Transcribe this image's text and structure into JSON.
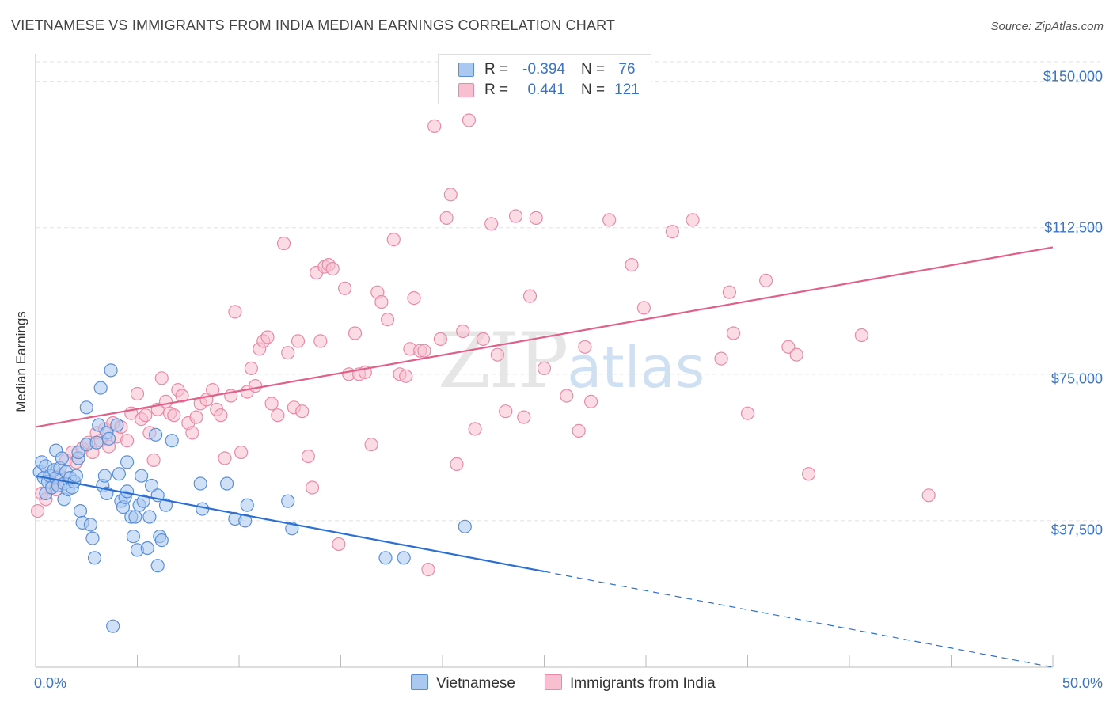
{
  "title": "VIETNAMESE VS IMMIGRANTS FROM INDIA MEDIAN EARNINGS CORRELATION CHART",
  "source": "Source: ZipAtlas.com",
  "watermark": {
    "zip": "ZIP",
    "atlas": "atlas"
  },
  "colors": {
    "vietnamese_fill": "#aac8f0",
    "vietnamese_stroke": "#5a8fd8",
    "vietnamese_line": "#2b6fd0",
    "india_fill": "#f7bfd0",
    "india_stroke": "#e889a8",
    "india_line": "#e0608a",
    "accent_text": "#3b74c4",
    "grid": "#e2e2e2"
  },
  "stats": [
    {
      "r_label": "R =",
      "r_value": "-0.394",
      "n_label": "N =",
      "n_value": "76",
      "swatch": "#aac8f0"
    },
    {
      "r_label": "R =",
      "r_value": "0.441",
      "n_label": "N =",
      "n_value": "121",
      "swatch": "#f7bfd0"
    }
  ],
  "legend": [
    {
      "label": "Vietnamese",
      "swatch": "#aac8f0"
    },
    {
      "label": "Immigrants from India",
      "swatch": "#f7bfd0"
    }
  ],
  "chart_data": {
    "type": "scatter",
    "title": "VIETNAMESE VS IMMIGRANTS FROM INDIA MEDIAN EARNINGS CORRELATION CHART",
    "xlabel": "",
    "ylabel": "Median Earnings",
    "xlim": [
      0,
      50
    ],
    "ylim": [
      0,
      155000
    ],
    "x_tick_labels": [
      "0.0%",
      "50.0%"
    ],
    "y_ticks": [
      37500,
      75000,
      112500,
      150000
    ],
    "y_tick_labels": [
      "$37,500",
      "$75,000",
      "$112,500",
      "$150,000"
    ],
    "grid": true,
    "legend_position": "bottom",
    "series": [
      {
        "name": "Vietnamese",
        "r": -0.394,
        "n": 76,
        "trend": {
          "x0": 0,
          "y0": 49000,
          "x_solid_end": 25,
          "x1": 50,
          "y1": 0
        },
        "points": [
          [
            0.2,
            50000
          ],
          [
            0.3,
            52500
          ],
          [
            0.4,
            48500
          ],
          [
            0.5,
            44500
          ],
          [
            0.5,
            51500
          ],
          [
            0.6,
            47500
          ],
          [
            0.7,
            49000
          ],
          [
            0.8,
            46000
          ],
          [
            0.9,
            50500
          ],
          [
            1.0,
            55500
          ],
          [
            1.0,
            48500
          ],
          [
            1.1,
            46500
          ],
          [
            1.2,
            51000
          ],
          [
            1.3,
            53500
          ],
          [
            1.4,
            47000
          ],
          [
            1.4,
            43000
          ],
          [
            1.5,
            50000
          ],
          [
            1.6,
            45500
          ],
          [
            1.7,
            48500
          ],
          [
            1.8,
            46000
          ],
          [
            1.9,
            47500
          ],
          [
            2.0,
            49000
          ],
          [
            2.1,
            53500
          ],
          [
            2.1,
            55000
          ],
          [
            2.2,
            40000
          ],
          [
            2.3,
            37000
          ],
          [
            2.5,
            57000
          ],
          [
            2.5,
            66500
          ],
          [
            2.7,
            36500
          ],
          [
            2.8,
            33000
          ],
          [
            2.9,
            28000
          ],
          [
            3.0,
            57500
          ],
          [
            3.1,
            62000
          ],
          [
            3.2,
            71500
          ],
          [
            3.3,
            46500
          ],
          [
            3.4,
            49000
          ],
          [
            3.5,
            44500
          ],
          [
            3.5,
            60000
          ],
          [
            3.6,
            58500
          ],
          [
            3.7,
            76000
          ],
          [
            3.8,
            10500
          ],
          [
            4.0,
            62000
          ],
          [
            4.1,
            49500
          ],
          [
            4.2,
            42500
          ],
          [
            4.3,
            41000
          ],
          [
            4.4,
            43500
          ],
          [
            4.5,
            52500
          ],
          [
            4.5,
            45000
          ],
          [
            4.7,
            38500
          ],
          [
            4.8,
            33500
          ],
          [
            4.9,
            38500
          ],
          [
            5.0,
            30000
          ],
          [
            5.1,
            41500
          ],
          [
            5.2,
            49000
          ],
          [
            5.3,
            42500
          ],
          [
            5.5,
            30500
          ],
          [
            5.6,
            38500
          ],
          [
            5.7,
            46500
          ],
          [
            5.9,
            59500
          ],
          [
            6.0,
            44000
          ],
          [
            6.0,
            26000
          ],
          [
            6.1,
            33500
          ],
          [
            6.2,
            32500
          ],
          [
            6.4,
            41500
          ],
          [
            6.7,
            58000
          ],
          [
            8.1,
            47000
          ],
          [
            8.2,
            40500
          ],
          [
            9.4,
            47000
          ],
          [
            9.8,
            38000
          ],
          [
            10.3,
            37500
          ],
          [
            10.4,
            41500
          ],
          [
            12.4,
            42500
          ],
          [
            12.6,
            35500
          ],
          [
            17.2,
            28000
          ],
          [
            18.1,
            28000
          ],
          [
            21.1,
            36000
          ]
        ]
      },
      {
        "name": "Immigrants from India",
        "r": 0.441,
        "n": 121,
        "trend": {
          "x0": 0,
          "y0": 61500,
          "x1": 50,
          "y1": 107500
        },
        "points": [
          [
            0.1,
            40000
          ],
          [
            0.3,
            44500
          ],
          [
            0.5,
            43000
          ],
          [
            0.8,
            47000
          ],
          [
            1.0,
            45500
          ],
          [
            1.2,
            49000
          ],
          [
            1.5,
            53000
          ],
          [
            1.8,
            55000
          ],
          [
            2.0,
            52500
          ],
          [
            2.3,
            56000
          ],
          [
            2.6,
            57500
          ],
          [
            2.8,
            55000
          ],
          [
            3.0,
            60000
          ],
          [
            3.2,
            58000
          ],
          [
            3.4,
            61000
          ],
          [
            3.6,
            56500
          ],
          [
            3.8,
            62500
          ],
          [
            4.0,
            59000
          ],
          [
            4.2,
            61500
          ],
          [
            4.5,
            58000
          ],
          [
            4.7,
            65000
          ],
          [
            5.0,
            70000
          ],
          [
            5.2,
            63500
          ],
          [
            5.4,
            64500
          ],
          [
            5.6,
            60000
          ],
          [
            5.8,
            53000
          ],
          [
            6.0,
            66000
          ],
          [
            6.2,
            74000
          ],
          [
            6.4,
            68000
          ],
          [
            6.6,
            65000
          ],
          [
            6.8,
            64500
          ],
          [
            7.0,
            71000
          ],
          [
            7.2,
            69500
          ],
          [
            7.5,
            62500
          ],
          [
            7.7,
            60000
          ],
          [
            7.9,
            64000
          ],
          [
            8.1,
            67500
          ],
          [
            8.4,
            68500
          ],
          [
            8.7,
            71000
          ],
          [
            8.9,
            66000
          ],
          [
            9.1,
            64500
          ],
          [
            9.3,
            53500
          ],
          [
            9.6,
            69500
          ],
          [
            9.8,
            91000
          ],
          [
            10.1,
            55000
          ],
          [
            10.4,
            70500
          ],
          [
            10.6,
            76500
          ],
          [
            10.8,
            72000
          ],
          [
            11.0,
            81500
          ],
          [
            11.2,
            83500
          ],
          [
            11.4,
            84500
          ],
          [
            11.6,
            67500
          ],
          [
            11.9,
            64500
          ],
          [
            12.2,
            108500
          ],
          [
            12.4,
            80500
          ],
          [
            12.7,
            66500
          ],
          [
            12.9,
            83500
          ],
          [
            13.1,
            65500
          ],
          [
            13.4,
            54000
          ],
          [
            13.6,
            46000
          ],
          [
            13.8,
            101000
          ],
          [
            14.0,
            83500
          ],
          [
            14.2,
            102500
          ],
          [
            14.4,
            103000
          ],
          [
            14.6,
            102000
          ],
          [
            14.9,
            31500
          ],
          [
            15.2,
            97000
          ],
          [
            15.4,
            75000
          ],
          [
            15.7,
            85500
          ],
          [
            15.9,
            75000
          ],
          [
            16.2,
            75500
          ],
          [
            16.5,
            57000
          ],
          [
            16.8,
            96000
          ],
          [
            17.0,
            93500
          ],
          [
            17.3,
            89000
          ],
          [
            17.6,
            109500
          ],
          [
            17.9,
            75000
          ],
          [
            18.2,
            74500
          ],
          [
            18.4,
            81500
          ],
          [
            18.6,
            94500
          ],
          [
            18.9,
            81000
          ],
          [
            19.1,
            81000
          ],
          [
            19.3,
            25000
          ],
          [
            19.6,
            138500
          ],
          [
            19.9,
            84000
          ],
          [
            20.2,
            115000
          ],
          [
            20.4,
            121000
          ],
          [
            20.7,
            52000
          ],
          [
            21.0,
            86000
          ],
          [
            21.3,
            140000
          ],
          [
            21.6,
            61000
          ],
          [
            22.0,
            84000
          ],
          [
            22.4,
            113500
          ],
          [
            22.7,
            80000
          ],
          [
            23.1,
            65500
          ],
          [
            23.6,
            115500
          ],
          [
            24.0,
            64000
          ],
          [
            24.3,
            95000
          ],
          [
            24.6,
            115000
          ],
          [
            25.0,
            76500
          ],
          [
            26.1,
            69500
          ],
          [
            26.7,
            60500
          ],
          [
            27.0,
            82000
          ],
          [
            27.3,
            68000
          ],
          [
            28.2,
            114500
          ],
          [
            29.3,
            103000
          ],
          [
            29.9,
            92000
          ],
          [
            31.3,
            111500
          ],
          [
            32.3,
            114500
          ],
          [
            33.7,
            79000
          ],
          [
            34.1,
            96000
          ],
          [
            34.3,
            85500
          ],
          [
            35.0,
            65000
          ],
          [
            35.9,
            99000
          ],
          [
            37.0,
            82000
          ],
          [
            37.4,
            80000
          ],
          [
            38.0,
            49500
          ],
          [
            40.6,
            85000
          ],
          [
            43.9,
            44000
          ]
        ]
      }
    ]
  }
}
